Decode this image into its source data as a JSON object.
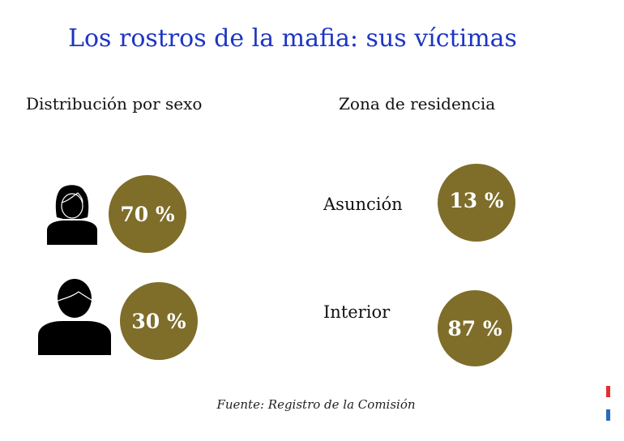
{
  "title": "Los rostros de la mafia: sus víctimas",
  "sex": {
    "heading": "Distribución por sexo",
    "female": "70 %",
    "male": "30 %"
  },
  "zone": {
    "heading": "Zona de residencia",
    "items": [
      {
        "label": "Asunción",
        "value": "13 %"
      },
      {
        "label": "Interior",
        "value": "87 %"
      }
    ]
  },
  "source": "Fuente: Registro de la Comisión",
  "colors": {
    "accent": "#7f6d2a",
    "title": "#1d35c4",
    "flag_red": "#e03030",
    "flag_blue": "#2a6ac0"
  }
}
